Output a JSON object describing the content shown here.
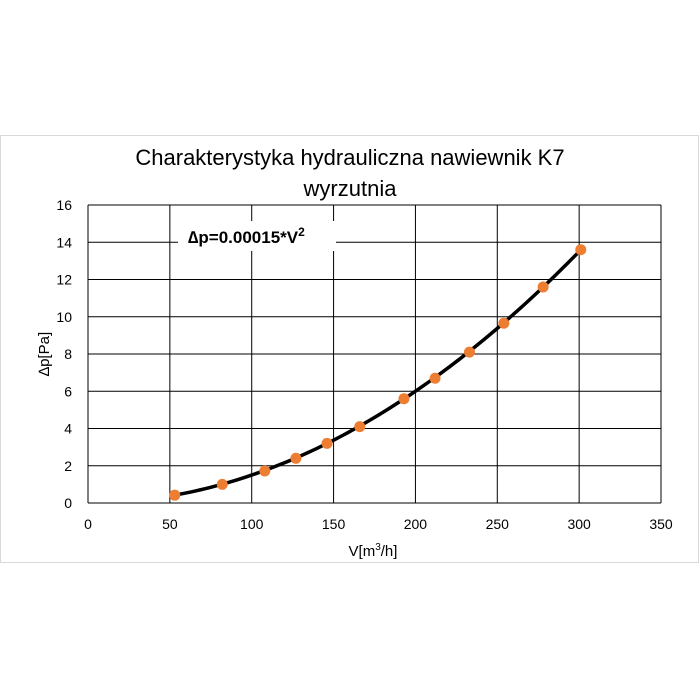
{
  "chart_data": {
    "type": "scatter",
    "title_line1": "Charakterystyka hydrauliczna nawiewnik K7",
    "title_line2": "wyrzutnia",
    "xlabel_main": "V[m",
    "xlabel_sup": "3",
    "xlabel_tail": "/h]",
    "ylabel": "∆p[Pa]",
    "annotation_main": "∆p=0.00015*V",
    "annotation_sup": "2",
    "xlim": [
      0,
      350
    ],
    "ylim": [
      0,
      16
    ],
    "xticks": [
      0,
      50,
      100,
      150,
      200,
      250,
      300,
      350
    ],
    "yticks": [
      0,
      2,
      4,
      6,
      8,
      10,
      12,
      14,
      16
    ],
    "grid": true,
    "fit": {
      "coefficient": 0.00015,
      "exponent": 2,
      "x_range": [
        53,
        301
      ],
      "color": "#000000"
    },
    "series": [
      {
        "color": "#ED7D31",
        "x": [
          53,
          82,
          108,
          127,
          146,
          166,
          193,
          212,
          233,
          254,
          278,
          301
        ],
        "y": [
          0.42,
          1.0,
          1.72,
          2.4,
          3.2,
          4.1,
          5.6,
          6.7,
          8.1,
          9.65,
          11.6,
          13.6
        ]
      }
    ]
  }
}
